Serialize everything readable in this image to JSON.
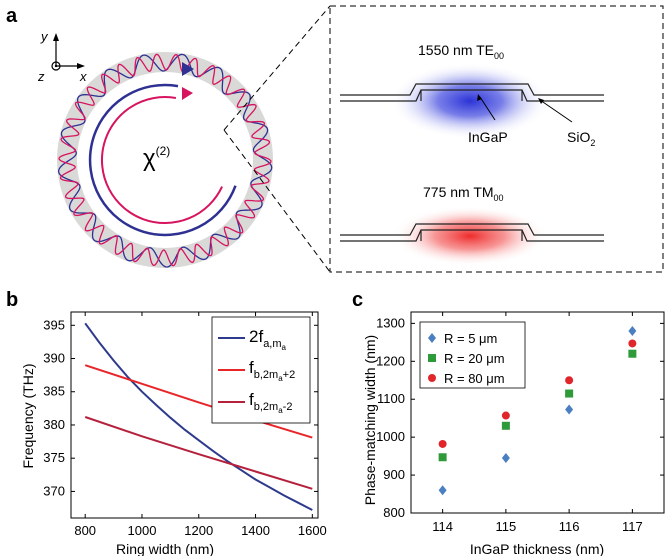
{
  "panel_a": {
    "label": "a",
    "axes": {
      "x": "x",
      "y": "y",
      "z": "z"
    },
    "chi2": {
      "base": "χ",
      "sup": "(2)"
    },
    "te_mode": {
      "text": "1550 nm TE",
      "sub": "00"
    },
    "tm_mode": {
      "text": "775 nm TM",
      "sub": "00"
    },
    "material_core": "InGaP",
    "material_clad": {
      "text": "SiO",
      "sub": "2"
    },
    "colors": {
      "ring": "#d9dad8",
      "blue": "#2e3192",
      "red": "#d7145f",
      "te_glow": "#2b33d6",
      "tm_glow": "#ee2b2b"
    }
  },
  "panel_b": {
    "label": "b",
    "xlabel": "Ring width (nm)",
    "ylabel": "Frequency (THz)",
    "legend": [
      {
        "main": "2f",
        "sub": "a,m",
        "subsub": "a"
      },
      {
        "main": "f",
        "sub": "b,2m",
        "subsub": "a",
        "tail": "+2"
      },
      {
        "main": "f",
        "sub": "b,2m",
        "subsub": "a",
        "tail": "-2"
      }
    ]
  },
  "panel_c": {
    "label": "c",
    "xlabel": "InGaP thickness (nm)",
    "ylabel": "Phase-matching width (nm)"
  },
  "chart_data": [
    {
      "type": "line",
      "xlim": [
        750,
        1620
      ],
      "ylim": [
        366,
        397
      ],
      "xticks": [
        800,
        1000,
        1200,
        1400,
        1600
      ],
      "yticks": [
        370,
        375,
        380,
        385,
        390,
        395
      ],
      "series": [
        {
          "name": "2f a,ma",
          "color": "#2e3a8c",
          "x": [
            800,
            850,
            900,
            950,
            1000,
            1050,
            1100,
            1150,
            1200,
            1250,
            1300,
            1350,
            1400,
            1450,
            1500,
            1550,
            1600
          ],
          "y": [
            395.3,
            392.4,
            389.7,
            387.2,
            385.0,
            383.0,
            381.1,
            379.3,
            377.7,
            376.1,
            374.6,
            373.2,
            371.8,
            370.6,
            369.4,
            368.3,
            367.2
          ]
        },
        {
          "name": "f b,2ma+2",
          "color": "#e8262a",
          "x": [
            800,
            1000,
            1200,
            1400,
            1600
          ],
          "y": [
            389.0,
            386.2,
            383.4,
            380.7,
            378.1
          ]
        },
        {
          "name": "f b,2ma-2",
          "color": "#b5213d",
          "x": [
            800,
            1000,
            1200,
            1400,
            1600
          ],
          "y": [
            381.2,
            378.3,
            375.6,
            373.0,
            370.4
          ]
        }
      ]
    },
    {
      "type": "scatter",
      "categories": [
        114,
        115,
        116,
        117
      ],
      "xlim": [
        113.5,
        117.5
      ],
      "ylim": [
        800,
        1330
      ],
      "yticks": [
        800,
        900,
        1000,
        1100,
        1200,
        1300
      ],
      "series": [
        {
          "name": "R = 5 μm",
          "marker": "diamond",
          "color": "#4a7fc1",
          "values": [
            860,
            945,
            1073,
            1280
          ]
        },
        {
          "name": "R = 20 μm",
          "marker": "square",
          "color": "#2e9a3a",
          "values": [
            947,
            1030,
            1115,
            1220
          ]
        },
        {
          "name": "R = 80 μm",
          "marker": "circle",
          "color": "#e0262b",
          "values": [
            982,
            1057,
            1150,
            1247
          ]
        }
      ]
    }
  ]
}
